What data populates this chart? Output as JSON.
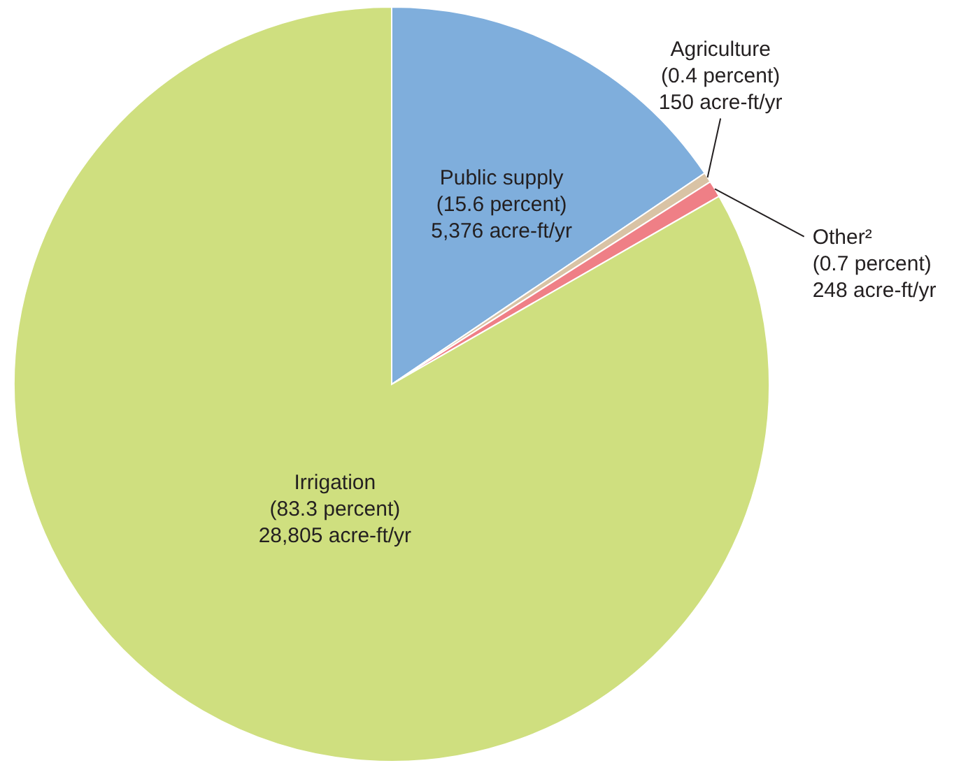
{
  "chart_data": {
    "type": "pie",
    "categories": [
      "Public supply",
      "Agriculture",
      "Other²",
      "Irrigation"
    ],
    "values": [
      5376,
      150,
      248,
      28805
    ],
    "colors": [
      "#7faedc",
      "#d9c3a5",
      "#ef7f86",
      "#cfdf7f"
    ],
    "value_labels": [
      "(15.6 percent)\n5,376 acre-ft/yr",
      "(0.4 percent)\n150 acre-ft/yr",
      "(0.7 percent)\n248 acre-ft/yr",
      "(83.3 percent)\n28,805 acre-ft/yr"
    ]
  }
}
